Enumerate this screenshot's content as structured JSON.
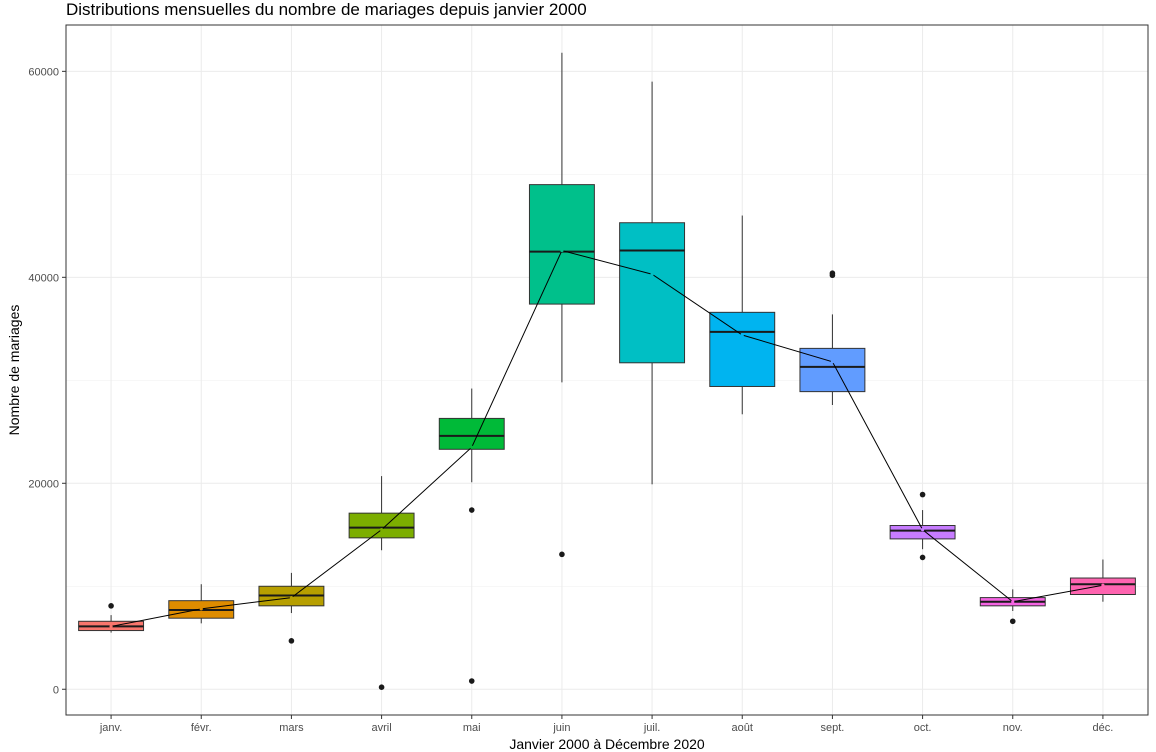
{
  "chart_data": {
    "type": "boxplot",
    "title": "Distributions mensuelles du nombre de mariages depuis janvier 2000",
    "xlabel": "Janvier 2000 à Décembre 2020",
    "ylabel": "Nombre de mariages",
    "ylim": [
      -2500,
      64500
    ],
    "yticks": [
      0,
      20000,
      40000,
      60000
    ],
    "grid": true,
    "legend": "none",
    "categories": [
      "janv.",
      "févr.",
      "mars",
      "avril",
      "mai",
      "juin",
      "juil.",
      "août",
      "sept.",
      "oct.",
      "nov.",
      "déc."
    ],
    "boxes": [
      {
        "category": "janv.",
        "color": "#F8766D",
        "whisker_low": 5500,
        "q1": 5700,
        "median": 6100,
        "q3": 6600,
        "whisker_high": 7200,
        "mean": 6100,
        "outliers": [
          8100
        ]
      },
      {
        "category": "févr.",
        "color": "#DE8C00",
        "whisker_low": 6400,
        "q1": 6900,
        "median": 7700,
        "q3": 8600,
        "whisker_high": 10200,
        "mean": 7800,
        "outliers": []
      },
      {
        "category": "mars",
        "color": "#B79F00",
        "whisker_low": 7400,
        "q1": 8100,
        "median": 9100,
        "q3": 10000,
        "whisker_high": 11300,
        "mean": 8900,
        "outliers": [
          4700
        ]
      },
      {
        "category": "avril",
        "color": "#7CAE00",
        "whisker_low": 13500,
        "q1": 14700,
        "median": 15700,
        "q3": 17100,
        "whisker_high": 20700,
        "mean": 15500,
        "outliers": [
          200
        ]
      },
      {
        "category": "mai",
        "color": "#00BA38",
        "whisker_low": 20100,
        "q1": 23300,
        "median": 24600,
        "q3": 26300,
        "whisker_high": 29200,
        "mean": 23500,
        "outliers": [
          17400,
          800
        ]
      },
      {
        "category": "juin",
        "color": "#00C08B",
        "whisker_low": 29800,
        "q1": 37400,
        "median": 42500,
        "q3": 49000,
        "whisker_high": 61800,
        "mean": 42600,
        "outliers": [
          13100
        ]
      },
      {
        "category": "juil.",
        "color": "#00BFC4",
        "whisker_low": 19900,
        "q1": 31700,
        "median": 42600,
        "q3": 45300,
        "whisker_high": 59000,
        "mean": 40300,
        "outliers": []
      },
      {
        "category": "août",
        "color": "#00B4F0",
        "whisker_low": 26700,
        "q1": 29400,
        "median": 34700,
        "q3": 36600,
        "whisker_high": 46000,
        "mean": 34400,
        "outliers": []
      },
      {
        "category": "sept.",
        "color": "#619CFF",
        "whisker_low": 27600,
        "q1": 28900,
        "median": 31300,
        "q3": 33100,
        "whisker_high": 36400,
        "mean": 31800,
        "outliers": [
          40400,
          40200
        ]
      },
      {
        "category": "oct.",
        "color": "#C77CFF",
        "whisker_low": 13600,
        "q1": 14600,
        "median": 15400,
        "q3": 15900,
        "whisker_high": 17400,
        "mean": 15500,
        "outliers": [
          18900,
          12800
        ]
      },
      {
        "category": "nov.",
        "color": "#F564E3",
        "whisker_low": 7600,
        "q1": 8100,
        "median": 8500,
        "q3": 8900,
        "whisker_high": 9700,
        "mean": 8500,
        "outliers": [
          6600
        ]
      },
      {
        "category": "déc.",
        "color": "#FF64B0",
        "whisker_low": 8500,
        "q1": 9200,
        "median": 10200,
        "q3": 10800,
        "whisker_high": 12600,
        "mean": 10100,
        "outliers": []
      }
    ],
    "mean_line": true
  }
}
